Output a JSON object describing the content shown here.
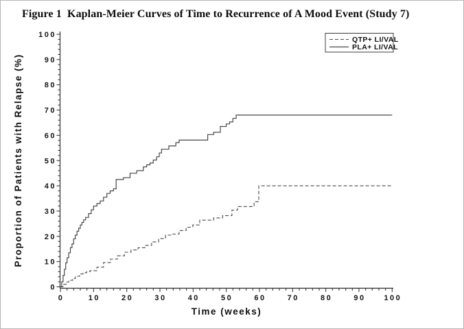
{
  "figure": {
    "title": "Figure 1  Kaplan-Meier Curves of Time to Recurrence of A Mood Event (Study 7)"
  },
  "chart_data": {
    "type": "line",
    "subtype": "kaplan-meier-step",
    "title": "Figure 1  Kaplan-Meier Curves of Time to Recurrence of A Mood Event (Study 7)",
    "xlabel": "Time (weeks)",
    "ylabel": "Proportion of Patients with Relapse (%)",
    "xlim": [
      0,
      100
    ],
    "ylim": [
      0,
      100
    ],
    "x_ticks": [
      0,
      10,
      20,
      30,
      40,
      50,
      60,
      70,
      80,
      90,
      100
    ],
    "y_ticks": [
      0,
      10,
      20,
      30,
      40,
      50,
      60,
      70,
      80,
      90,
      100
    ],
    "minor_tick_interval": 2,
    "grid": false,
    "line_color": "#474747",
    "legend": {
      "position": "top-right",
      "entries": [
        {
          "label": "QTP+ LI/VAL",
          "line": "dashed"
        },
        {
          "label": "PLA+ LI/VAL",
          "line": "solid"
        }
      ]
    },
    "series": [
      {
        "name": "QTP+ LI/VAL",
        "style": "dashed",
        "points": [
          [
            0,
            0
          ],
          [
            0.8,
            1
          ],
          [
            1.7,
            1.9
          ],
          [
            2.5,
            2.6
          ],
          [
            3.7,
            3.3
          ],
          [
            4.5,
            4.2
          ],
          [
            5.8,
            5.1
          ],
          [
            6.8,
            5.6
          ],
          [
            7.9,
            6.0
          ],
          [
            8.9,
            6.4
          ],
          [
            11,
            7.8
          ],
          [
            13,
            9.6
          ],
          [
            15.1,
            11.0
          ],
          [
            17.2,
            12.3
          ],
          [
            19.3,
            13.7
          ],
          [
            21.3,
            14.6
          ],
          [
            23.4,
            15.5
          ],
          [
            25.5,
            16.4
          ],
          [
            27.5,
            17.8
          ],
          [
            29.6,
            19.1
          ],
          [
            31.7,
            20.5
          ],
          [
            33.7,
            20.9
          ],
          [
            35.8,
            22.3
          ],
          [
            37.9,
            23.6
          ],
          [
            39.9,
            24.5
          ],
          [
            42,
            26.4
          ],
          [
            46.2,
            27.3
          ],
          [
            48.9,
            28.2
          ],
          [
            51.7,
            30.4
          ],
          [
            53.4,
            31.8
          ],
          [
            58.4,
            33.7
          ],
          [
            59.8,
            40
          ],
          [
            100,
            40
          ]
        ]
      },
      {
        "name": "PLA+ LI/VAL",
        "style": "solid",
        "points": [
          [
            0,
            0
          ],
          [
            0.4,
            2
          ],
          [
            0.8,
            4.5
          ],
          [
            1.2,
            7
          ],
          [
            1.6,
            9.5
          ],
          [
            2,
            11.5
          ],
          [
            2.5,
            13.5
          ],
          [
            3,
            15.5
          ],
          [
            3.5,
            17
          ],
          [
            4,
            19
          ],
          [
            4.5,
            20.5
          ],
          [
            5,
            22
          ],
          [
            5.5,
            23.2
          ],
          [
            6,
            24.5
          ],
          [
            6.5,
            25.5
          ],
          [
            7,
            26.5
          ],
          [
            7.6,
            27.5
          ],
          [
            8.5,
            29
          ],
          [
            9.3,
            30.5
          ],
          [
            10,
            32
          ],
          [
            11,
            33
          ],
          [
            12,
            34
          ],
          [
            13,
            35.5
          ],
          [
            14,
            37
          ],
          [
            15,
            38
          ],
          [
            16,
            38.8
          ],
          [
            16.8,
            42.5
          ],
          [
            19,
            43.2
          ],
          [
            21,
            45
          ],
          [
            23,
            46
          ],
          [
            25,
            47.5
          ],
          [
            26,
            48.3
          ],
          [
            27,
            49
          ],
          [
            28,
            50.2
          ],
          [
            29,
            51.5
          ],
          [
            29.8,
            53
          ],
          [
            30.5,
            54.5
          ],
          [
            32.7,
            55.8
          ],
          [
            34.8,
            57.1
          ],
          [
            35.8,
            58.1
          ],
          [
            44.4,
            60.3
          ],
          [
            46.2,
            61.2
          ],
          [
            48.2,
            63.5
          ],
          [
            50,
            64.5
          ],
          [
            51,
            65.3
          ],
          [
            52,
            66.7
          ],
          [
            53,
            68
          ],
          [
            100,
            68
          ]
        ]
      }
    ]
  }
}
